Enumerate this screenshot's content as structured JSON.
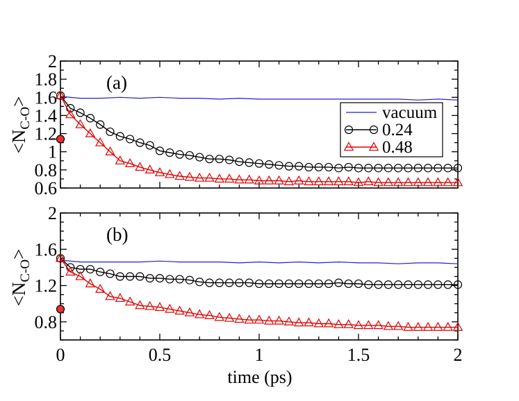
{
  "colors": {
    "vacuum": "#2020d0",
    "c024": "#000000",
    "c048": "#e00000"
  },
  "xlabel": "time (ps)",
  "ylabel_main": "<N",
  "ylabel_sub": "C-O",
  "ylabel_end": ">",
  "x_ticks": [
    "0",
    "0.5",
    "1",
    "1.5",
    "2"
  ],
  "chart_data": [
    {
      "type": "line",
      "panel_label": "(a)",
      "xlim": [
        0,
        2
      ],
      "ylim": [
        0.6,
        2.0
      ],
      "y_ticks": [
        "0.6",
        "0.8",
        "1",
        "1.2",
        "1.4",
        "1.6",
        "1.8",
        "2"
      ],
      "y_tick_values": [
        0.6,
        0.8,
        1.0,
        1.2,
        1.4,
        1.6,
        1.8,
        2.0
      ],
      "legend": {
        "position": "right",
        "entries": [
          "vacuum",
          "0.24",
          "0.48"
        ]
      },
      "initial_point": {
        "x": 0.0,
        "y": 1.14
      },
      "series": [
        {
          "name": "vacuum",
          "marker": "none",
          "x": [
            0,
            0.1,
            0.2,
            0.3,
            0.4,
            0.5,
            0.6,
            0.7,
            0.8,
            0.9,
            1.0,
            1.1,
            1.2,
            1.3,
            1.4,
            1.5,
            1.6,
            1.7,
            1.8,
            1.9,
            2.0
          ],
          "y": [
            1.61,
            1.59,
            1.59,
            1.6,
            1.59,
            1.6,
            1.59,
            1.59,
            1.58,
            1.59,
            1.58,
            1.58,
            1.58,
            1.58,
            1.58,
            1.58,
            1.58,
            1.58,
            1.57,
            1.58,
            1.57
          ]
        },
        {
          "name": "0.24",
          "marker": "circle",
          "x": [
            0,
            0.05,
            0.1,
            0.15,
            0.2,
            0.25,
            0.3,
            0.35,
            0.4,
            0.45,
            0.5,
            0.55,
            0.6,
            0.65,
            0.7,
            0.75,
            0.8,
            0.85,
            0.9,
            0.95,
            1.0,
            1.05,
            1.1,
            1.15,
            1.2,
            1.25,
            1.3,
            1.35,
            1.4,
            1.45,
            1.5,
            1.55,
            1.6,
            1.65,
            1.7,
            1.75,
            1.8,
            1.85,
            1.9,
            1.95,
            2.0
          ],
          "y": [
            1.62,
            1.48,
            1.43,
            1.37,
            1.3,
            1.22,
            1.17,
            1.14,
            1.1,
            1.07,
            1.01,
            0.99,
            0.97,
            0.96,
            0.94,
            0.92,
            0.92,
            0.91,
            0.89,
            0.88,
            0.87,
            0.86,
            0.85,
            0.84,
            0.84,
            0.83,
            0.83,
            0.83,
            0.82,
            0.83,
            0.82,
            0.82,
            0.82,
            0.82,
            0.82,
            0.82,
            0.82,
            0.82,
            0.82,
            0.82,
            0.82
          ]
        },
        {
          "name": "0.48",
          "marker": "triangle",
          "x": [
            0,
            0.05,
            0.1,
            0.15,
            0.2,
            0.25,
            0.3,
            0.35,
            0.4,
            0.45,
            0.5,
            0.55,
            0.6,
            0.65,
            0.7,
            0.75,
            0.8,
            0.85,
            0.9,
            0.95,
            1.0,
            1.05,
            1.1,
            1.15,
            1.2,
            1.25,
            1.3,
            1.35,
            1.4,
            1.45,
            1.5,
            1.55,
            1.6,
            1.65,
            1.7,
            1.75,
            1.8,
            1.85,
            1.9,
            1.95,
            2.0
          ],
          "y": [
            1.62,
            1.41,
            1.3,
            1.2,
            1.1,
            1.0,
            0.9,
            0.87,
            0.83,
            0.8,
            0.77,
            0.75,
            0.73,
            0.72,
            0.71,
            0.71,
            0.7,
            0.7,
            0.69,
            0.69,
            0.68,
            0.68,
            0.68,
            0.67,
            0.68,
            0.67,
            0.67,
            0.67,
            0.67,
            0.67,
            0.66,
            0.67,
            0.66,
            0.66,
            0.66,
            0.66,
            0.66,
            0.66,
            0.66,
            0.66,
            0.66
          ]
        }
      ]
    },
    {
      "type": "line",
      "panel_label": "(b)",
      "xlim": [
        0,
        2
      ],
      "ylim": [
        0.6,
        2.0
      ],
      "y_ticks": [
        "0.8",
        "1.2",
        "1.6",
        "2"
      ],
      "y_tick_values": [
        0.8,
        1.2,
        1.6,
        2.0
      ],
      "initial_point": {
        "x": 0.0,
        "y": 0.94
      },
      "series": [
        {
          "name": "vacuum",
          "marker": "none",
          "x": [
            0,
            0.1,
            0.2,
            0.3,
            0.4,
            0.5,
            0.6,
            0.7,
            0.8,
            0.9,
            1.0,
            1.1,
            1.2,
            1.3,
            1.4,
            1.5,
            1.6,
            1.7,
            1.8,
            1.9,
            2.0
          ],
          "y": [
            1.48,
            1.46,
            1.46,
            1.46,
            1.46,
            1.47,
            1.46,
            1.46,
            1.46,
            1.45,
            1.46,
            1.45,
            1.46,
            1.45,
            1.46,
            1.45,
            1.45,
            1.44,
            1.45,
            1.45,
            1.44
          ]
        },
        {
          "name": "0.24",
          "marker": "circle",
          "x": [
            0,
            0.05,
            0.1,
            0.15,
            0.2,
            0.25,
            0.3,
            0.35,
            0.4,
            0.45,
            0.5,
            0.55,
            0.6,
            0.65,
            0.7,
            0.75,
            0.8,
            0.85,
            0.9,
            0.95,
            1.0,
            1.05,
            1.1,
            1.15,
            1.2,
            1.25,
            1.3,
            1.35,
            1.4,
            1.45,
            1.5,
            1.55,
            1.6,
            1.65,
            1.7,
            1.75,
            1.8,
            1.85,
            1.9,
            1.95,
            2.0
          ],
          "y": [
            1.5,
            1.4,
            1.38,
            1.38,
            1.35,
            1.33,
            1.3,
            1.3,
            1.3,
            1.28,
            1.28,
            1.27,
            1.27,
            1.26,
            1.24,
            1.23,
            1.23,
            1.23,
            1.23,
            1.23,
            1.22,
            1.22,
            1.22,
            1.22,
            1.22,
            1.22,
            1.22,
            1.22,
            1.23,
            1.22,
            1.22,
            1.21,
            1.21,
            1.21,
            1.21,
            1.21,
            1.21,
            1.21,
            1.21,
            1.21,
            1.21
          ]
        },
        {
          "name": "0.48",
          "marker": "triangle",
          "x": [
            0,
            0.05,
            0.1,
            0.15,
            0.2,
            0.25,
            0.3,
            0.35,
            0.4,
            0.45,
            0.5,
            0.55,
            0.6,
            0.65,
            0.7,
            0.75,
            0.8,
            0.85,
            0.9,
            0.95,
            1.0,
            1.05,
            1.1,
            1.15,
            1.2,
            1.25,
            1.3,
            1.35,
            1.4,
            1.45,
            1.5,
            1.55,
            1.6,
            1.65,
            1.7,
            1.75,
            1.8,
            1.85,
            1.9,
            1.95,
            2.0
          ],
          "y": [
            1.5,
            1.35,
            1.3,
            1.22,
            1.16,
            1.08,
            1.06,
            1.02,
            0.98,
            0.97,
            0.96,
            0.94,
            0.92,
            0.9,
            0.88,
            0.87,
            0.85,
            0.84,
            0.83,
            0.82,
            0.82,
            0.81,
            0.81,
            0.8,
            0.79,
            0.79,
            0.78,
            0.78,
            0.77,
            0.77,
            0.76,
            0.76,
            0.76,
            0.75,
            0.75,
            0.74,
            0.74,
            0.74,
            0.74,
            0.74,
            0.74
          ]
        }
      ]
    }
  ]
}
